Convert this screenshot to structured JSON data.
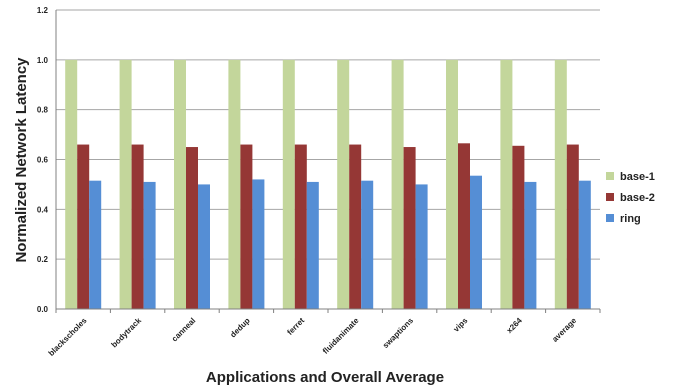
{
  "chart_data": {
    "type": "bar",
    "title": "",
    "xlabel": "Applications and Overall Average",
    "ylabel": "Normalized Network Latency",
    "ylim": [
      0,
      1.2
    ],
    "yticks": [
      "0.0",
      "0.2",
      "0.4",
      "0.6",
      "0.8",
      "1.0",
      "1.2"
    ],
    "grid": true,
    "legend_position": "right",
    "categories": [
      "blackscholes",
      "bodytrack",
      "canneal",
      "dedup",
      "ferret",
      "fluidanimate",
      "swaptions",
      "vips",
      "x264",
      "average"
    ],
    "series": [
      {
        "name": "base-1",
        "color": "#c3d69b",
        "values": [
          1.0,
          1.0,
          1.0,
          1.0,
          1.0,
          1.0,
          1.0,
          1.0,
          1.0,
          1.0
        ]
      },
      {
        "name": "base-2",
        "color": "#953735",
        "values": [
          0.66,
          0.66,
          0.65,
          0.66,
          0.66,
          0.66,
          0.65,
          0.665,
          0.655,
          0.66
        ]
      },
      {
        "name": "ring",
        "color": "#558ed5",
        "values": [
          0.515,
          0.51,
          0.5,
          0.52,
          0.51,
          0.515,
          0.5,
          0.535,
          0.51,
          0.515
        ]
      }
    ]
  }
}
